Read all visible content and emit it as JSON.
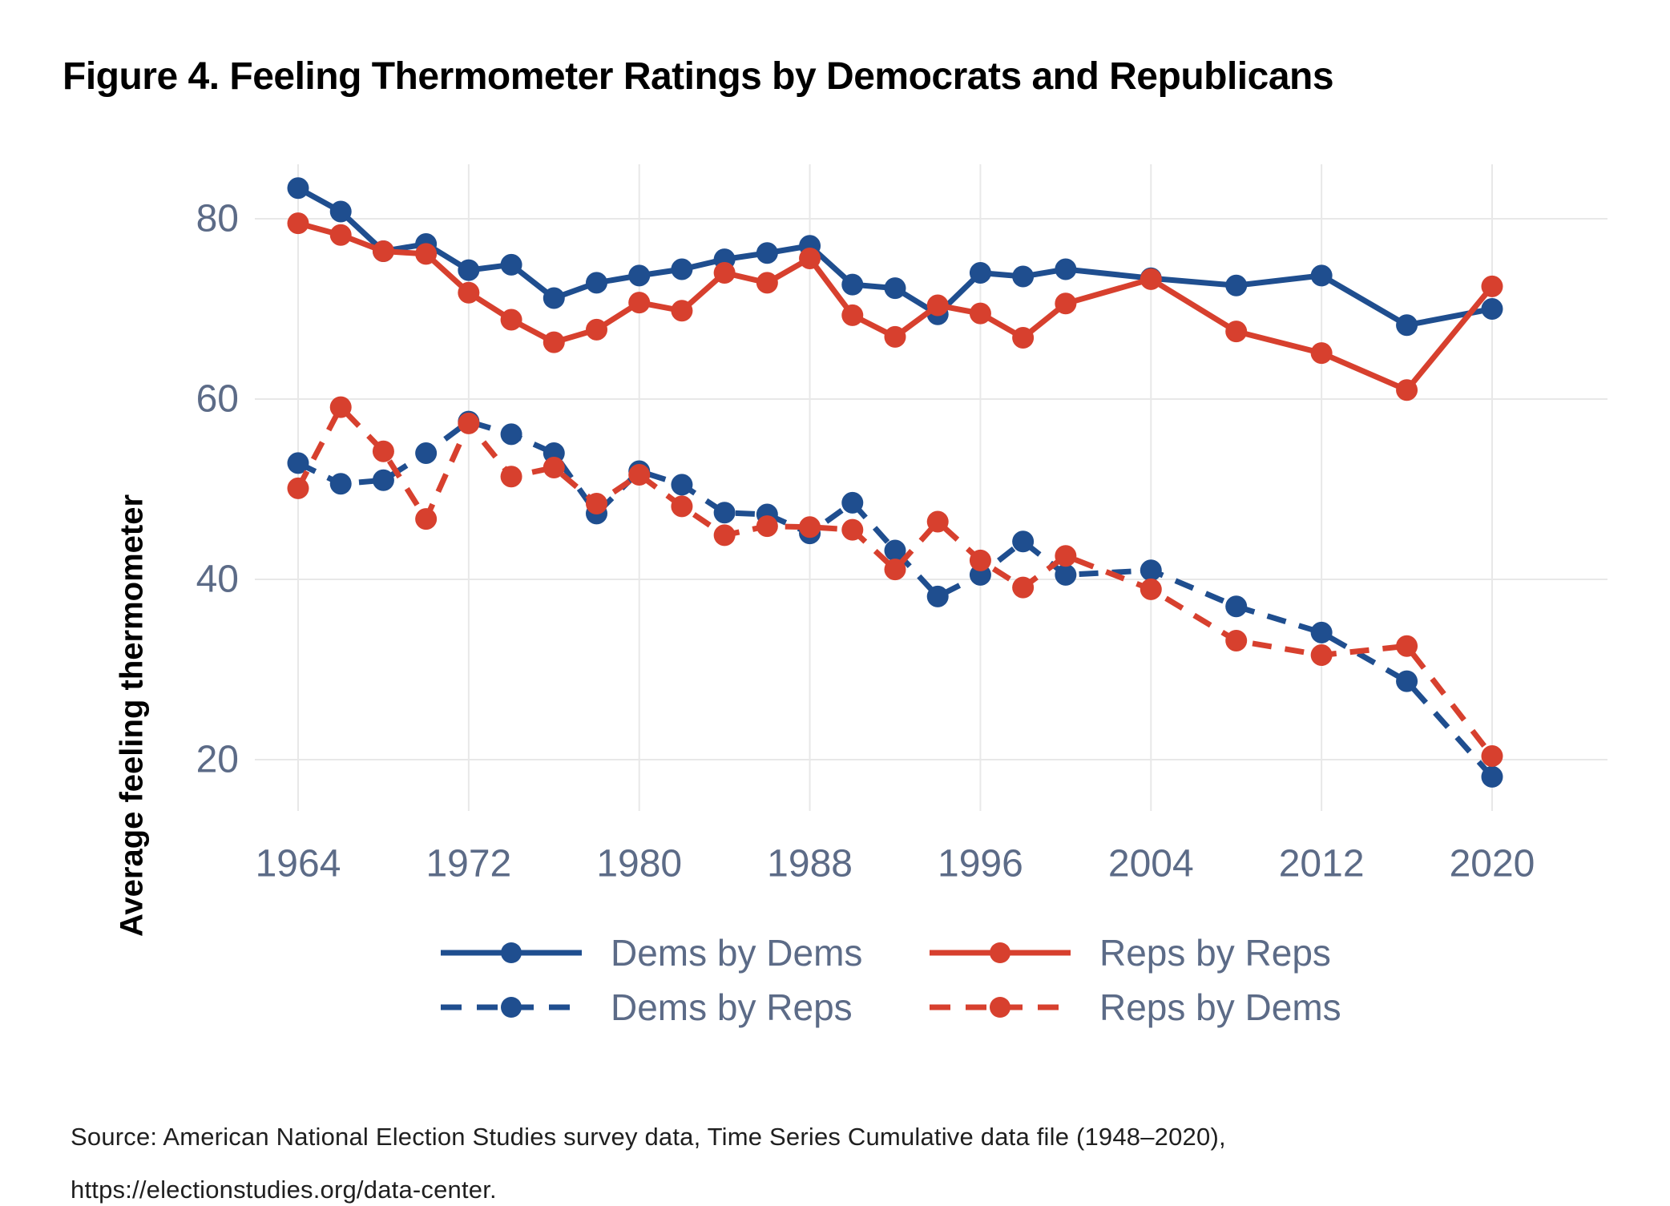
{
  "title": "Figure 4. Feeling Thermometer Ratings by Democrats and Republicans",
  "y_axis_title": "Average feeling thermometer",
  "colors": {
    "dem_blue": "#1F4E8F",
    "rep_red": "#D7402E",
    "grid": "#E8E8E8",
    "axis_text": "#5C6B87",
    "title_text": "#000000"
  },
  "legend": {
    "items": [
      {
        "label": "Dems by Dems",
        "color_key": "dem_blue",
        "dash": false
      },
      {
        "label": "Reps by Reps",
        "color_key": "rep_red",
        "dash": false
      },
      {
        "label": "Dems by Reps",
        "color_key": "dem_blue",
        "dash": true
      },
      {
        "label": "Reps by Dems",
        "color_key": "rep_red",
        "dash": true
      }
    ]
  },
  "source": {
    "line1": "Source: American National Election Studies survey data, Time Series Cumulative data file (1948–2020),",
    "line2": "https://electionstudies.org/data-center."
  },
  "chart_data": {
    "type": "line",
    "x": [
      1964,
      1966,
      1968,
      1970,
      1972,
      1974,
      1976,
      1978,
      1980,
      1982,
      1984,
      1986,
      1988,
      1990,
      1992,
      1994,
      1996,
      1998,
      2000,
      2004,
      2008,
      2012,
      2016,
      2020
    ],
    "series": [
      {
        "name": "Dems by Dems",
        "color_key": "dem_blue",
        "dash": false,
        "values": [
          83.4,
          80.8,
          76.4,
          77.2,
          74.3,
          74.9,
          71.2,
          72.9,
          73.7,
          74.4,
          75.5,
          76.2,
          77.0,
          72.7,
          72.3,
          69.4,
          74.0,
          73.6,
          74.4,
          73.4,
          72.6,
          73.7,
          68.2,
          70.0
        ]
      },
      {
        "name": "Reps by Reps",
        "color_key": "rep_red",
        "dash": false,
        "values": [
          79.5,
          78.2,
          76.4,
          76.1,
          71.8,
          68.8,
          66.3,
          67.7,
          70.7,
          69.8,
          74.0,
          72.9,
          75.6,
          69.3,
          66.9,
          70.4,
          69.5,
          66.8,
          70.6,
          73.3,
          67.5,
          65.1,
          61.0,
          72.5
        ]
      },
      {
        "name": "Dems by Reps",
        "color_key": "dem_blue",
        "dash": true,
        "values": [
          52.9,
          50.6,
          51.0,
          54.0,
          57.5,
          56.1,
          54.0,
          47.3,
          52.0,
          50.5,
          47.4,
          47.2,
          45.1,
          48.5,
          43.2,
          38.1,
          40.5,
          44.2,
          40.5,
          41.0,
          37.0,
          34.1,
          28.7,
          18.1
        ]
      },
      {
        "name": "Reps by Dems",
        "color_key": "rep_red",
        "dash": true,
        "values": [
          50.1,
          59.1,
          54.2,
          46.7,
          57.3,
          51.4,
          52.4,
          48.4,
          51.6,
          48.1,
          44.9,
          45.9,
          45.8,
          45.5,
          41.1,
          46.4,
          42.1,
          39.1,
          42.6,
          38.9,
          33.2,
          31.6,
          32.6,
          20.4
        ]
      }
    ],
    "title": "Figure 4. Feeling Thermometer Ratings by Democrats and Republicans",
    "xlabel": "",
    "ylabel": "Average feeling thermometer",
    "xticks": [
      1964,
      1972,
      1980,
      1988,
      1996,
      2004,
      2012,
      2020
    ],
    "yticks": [
      20,
      40,
      60,
      80
    ],
    "ylim": [
      14,
      89
    ],
    "grid": true,
    "legend_position": "bottom"
  }
}
